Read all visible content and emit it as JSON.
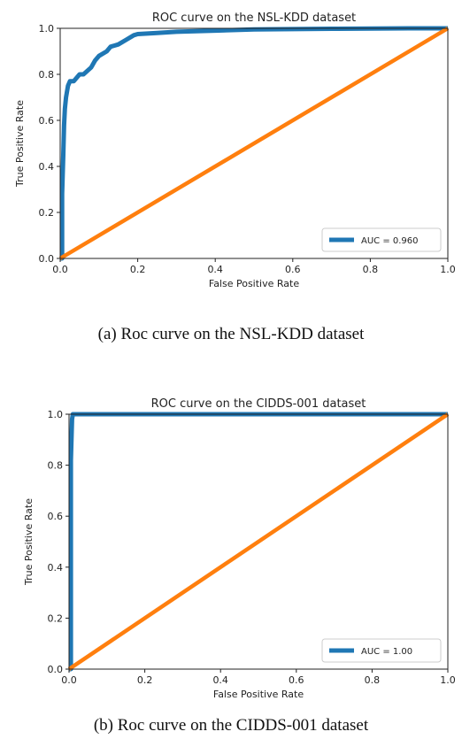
{
  "chart_data": [
    {
      "type": "line",
      "title": "ROC curve on the NSL-KDD dataset",
      "xlabel": "False Positive Rate",
      "ylabel": "True Positive Rate",
      "xlim": [
        0,
        1
      ],
      "ylim": [
        0,
        1
      ],
      "xticks": [
        "0.0",
        "0.2",
        "0.4",
        "0.6",
        "0.8",
        "1.0"
      ],
      "yticks": [
        "0.0",
        "0.2",
        "0.4",
        "0.6",
        "0.8",
        "1.0"
      ],
      "grid": false,
      "legend_position": "lower-right",
      "series": [
        {
          "name": "AUC = 0.960",
          "color": "#1f77b4",
          "x": [
            0,
            0.005,
            0.005,
            0.008,
            0.01,
            0.012,
            0.015,
            0.02,
            0.025,
            0.035,
            0.05,
            0.06,
            0.08,
            0.09,
            0.1,
            0.12,
            0.13,
            0.15,
            0.17,
            0.19,
            0.2,
            0.25,
            0.3,
            0.4,
            0.5,
            0.7,
            0.9,
            1.0
          ],
          "y": [
            0,
            0,
            0.28,
            0.45,
            0.58,
            0.65,
            0.7,
            0.75,
            0.77,
            0.77,
            0.8,
            0.8,
            0.83,
            0.86,
            0.88,
            0.9,
            0.92,
            0.93,
            0.95,
            0.97,
            0.975,
            0.98,
            0.985,
            0.99,
            0.995,
            0.998,
            1.0,
            1.0
          ]
        },
        {
          "name": "",
          "color": "#ff7f0e",
          "x": [
            0,
            1
          ],
          "y": [
            0,
            1
          ]
        }
      ]
    },
    {
      "type": "line",
      "title": "ROC curve on the CIDDS-001 dataset",
      "xlabel": "False Positive Rate",
      "ylabel": "True Positive Rate",
      "xlim": [
        0,
        1
      ],
      "ylim": [
        0,
        1
      ],
      "xticks": [
        "0.0",
        "0.2",
        "0.4",
        "0.6",
        "0.8",
        "1.0"
      ],
      "yticks": [
        "0.0",
        "0.2",
        "0.4",
        "0.6",
        "0.8",
        "1.0"
      ],
      "grid": false,
      "legend_position": "lower-right",
      "series": [
        {
          "name": "AUC = 1.00",
          "color": "#1f77b4",
          "x": [
            0,
            0.005,
            0.005,
            0.008,
            0.01,
            0.02,
            1.0
          ],
          "y": [
            0,
            0,
            0.82,
            0.98,
            1.0,
            1.0,
            1.0
          ]
        },
        {
          "name": "",
          "color": "#ff7f0e",
          "x": [
            0,
            1
          ],
          "y": [
            0,
            1
          ]
        }
      ]
    }
  ],
  "captions": [
    "(a) Roc curve on the NSL-KDD dataset",
    "(b) Roc curve on the CIDDS-001 dataset"
  ]
}
